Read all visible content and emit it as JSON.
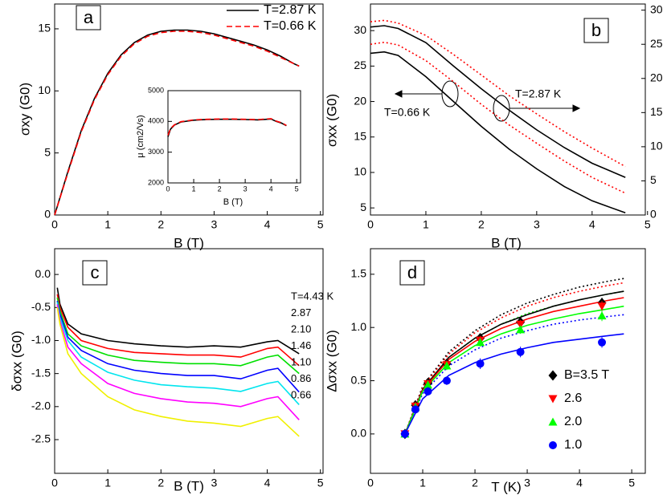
{
  "chart_data": [
    {
      "type": "line",
      "panel_label": "a",
      "xlabel": "B (T)",
      "ylabel": "σxy (G0)",
      "xlim": [
        0,
        5.05
      ],
      "ylim": [
        0,
        17
      ],
      "xticks": [
        0,
        1,
        2,
        3,
        4,
        5
      ],
      "yticks": [
        0,
        5,
        10,
        15
      ],
      "legend": "upper right",
      "x": [
        0,
        0.25,
        0.5,
        0.75,
        1,
        1.25,
        1.5,
        1.75,
        2,
        2.25,
        2.5,
        2.75,
        3,
        3.25,
        3.5,
        3.75,
        4,
        4.25,
        4.5,
        4.6
      ],
      "series": [
        {
          "name": "T=2.87 K",
          "color": "#000000",
          "style": "solid",
          "values": [
            0,
            3.5,
            6.8,
            9.4,
            11.4,
            12.9,
            13.9,
            14.5,
            14.8,
            14.9,
            14.9,
            14.8,
            14.6,
            14.3,
            14.0,
            13.7,
            13.3,
            12.8,
            12.2,
            12.0
          ]
        },
        {
          "name": "T=0.66 K",
          "color": "#ff0000",
          "style": "dashed",
          "values": [
            0,
            3.4,
            6.7,
            9.3,
            11.3,
            12.8,
            13.8,
            14.4,
            14.7,
            14.8,
            14.8,
            14.7,
            14.5,
            14.2,
            13.9,
            13.6,
            13.2,
            12.7,
            12.2,
            12.0
          ]
        }
      ]
    },
    {
      "type": "line",
      "xlabel": "B (T)",
      "ylabel": "μ (cm2/Vs)",
      "xlim": [
        0,
        5.15
      ],
      "ylim": [
        2000,
        5000
      ],
      "xticks": [
        0,
        1,
        2,
        3,
        4,
        5
      ],
      "yticks": [
        2000,
        3000,
        4000,
        5000
      ],
      "x": [
        0,
        0.1,
        0.25,
        0.5,
        1,
        1.5,
        2,
        2.5,
        3,
        3.5,
        4,
        4.2,
        4.4,
        4.6
      ],
      "series": [
        {
          "color": "#000000",
          "style": "solid",
          "values": [
            3500,
            3750,
            3880,
            3980,
            4040,
            4060,
            4070,
            4070,
            4060,
            4050,
            4080,
            4000,
            3950,
            3860
          ]
        },
        {
          "color": "#ff0000",
          "style": "dashed",
          "values": [
            3550,
            3770,
            3890,
            3990,
            4050,
            4070,
            4080,
            4080,
            4070,
            4060,
            4090,
            4010,
            3960,
            3870
          ]
        }
      ]
    },
    {
      "type": "line",
      "panel_label": "b",
      "xlabel": "B (T)",
      "ylabel": "σxx (G0)",
      "xlim": [
        0,
        4.96
      ],
      "ylim": [
        4,
        33.75
      ],
      "y2lim": [
        0,
        30.9
      ],
      "xticks": [
        0,
        1,
        2,
        3,
        4,
        5
      ],
      "yticks": [
        5,
        10,
        15,
        20,
        25,
        30
      ],
      "y2ticks": [
        0,
        5,
        10,
        15,
        20,
        25,
        30
      ],
      "annotations": [
        "T=0.66 K",
        "T=2.87 K"
      ],
      "x": [
        0,
        0.25,
        0.5,
        1,
        1.5,
        2,
        2.5,
        3,
        3.5,
        4,
        4.6
      ],
      "series": [
        {
          "color": "#000000",
          "style": "solid",
          "values": [
            30.5,
            30.7,
            30.3,
            28.3,
            25,
            21.8,
            18.8,
            16,
            13.5,
            11.3,
            9.3
          ]
        },
        {
          "color": "#000000",
          "style": "solid",
          "values": [
            26.8,
            27,
            26.5,
            23.5,
            20,
            16.5,
            13.3,
            10.5,
            8,
            6,
            4.3
          ]
        },
        {
          "color": "#ff0000",
          "style": "dotted",
          "axis": "y2",
          "values": [
            28.3,
            28.5,
            28.1,
            26.3,
            23.5,
            20.5,
            17.5,
            14.8,
            12.2,
            9.8,
            7.1
          ]
        },
        {
          "color": "#ff0000",
          "style": "dotted",
          "axis": "y2",
          "values": [
            25,
            25.3,
            24.9,
            22.6,
            19.5,
            16.2,
            13.2,
            10.5,
            7.9,
            5.5,
            3.2
          ]
        }
      ]
    },
    {
      "type": "line",
      "panel_label": "c",
      "xlabel": "B (T)",
      "ylabel": "δσxx (G0)",
      "xlim": [
        0,
        5.05
      ],
      "ylim": [
        -3.01,
        0.39
      ],
      "xticks": [
        0,
        1,
        2,
        3,
        4,
        5
      ],
      "yticks": [
        {
          "value": 0,
          "label": "0.0"
        },
        -0.5,
        {
          "value": -1,
          "label": "-1.0"
        },
        -1.5,
        {
          "value": -2,
          "label": "-2.0"
        },
        -2.5
      ],
      "legend": "right labels",
      "x": [
        0.05,
        0.1,
        0.25,
        0.5,
        1,
        1.5,
        2,
        2.5,
        3,
        3.5,
        4,
        4.2,
        4.6
      ],
      "series": [
        {
          "name": "T=4.43 K",
          "color": "#000000",
          "style": "solid",
          "values": [
            -0.2,
            -0.45,
            -0.75,
            -0.9,
            -1.0,
            -1.05,
            -1.08,
            -1.1,
            -1.08,
            -1.1,
            -1.02,
            -1.0,
            -1.2
          ]
        },
        {
          "name": "2.87",
          "color": "#ff0000",
          "style": "solid",
          "values": [
            -0.3,
            -0.5,
            -0.8,
            -1.0,
            -1.12,
            -1.18,
            -1.2,
            -1.22,
            -1.22,
            -1.25,
            -1.12,
            -1.1,
            -1.38
          ]
        },
        {
          "name": "2.10",
          "color": "#00e000",
          "style": "solid",
          "values": [
            -0.35,
            -0.55,
            -0.9,
            -1.08,
            -1.22,
            -1.3,
            -1.33,
            -1.35,
            -1.35,
            -1.38,
            -1.25,
            -1.22,
            -1.5
          ]
        },
        {
          "name": "1.46",
          "color": "#0000ff",
          "style": "solid",
          "values": [
            -0.4,
            -0.6,
            -0.95,
            -1.15,
            -1.35,
            -1.45,
            -1.5,
            -1.53,
            -1.53,
            -1.58,
            -1.45,
            -1.42,
            -1.78
          ]
        },
        {
          "name": "1.10",
          "color": "#00e5ee",
          "style": "solid",
          "values": [
            -0.42,
            -0.65,
            -1.0,
            -1.25,
            -1.48,
            -1.6,
            -1.67,
            -1.7,
            -1.72,
            -1.77,
            -1.65,
            -1.62,
            -1.97
          ]
        },
        {
          "name": "0.86",
          "color": "#ff00ff",
          "style": "solid",
          "values": [
            -0.45,
            -0.7,
            -1.1,
            -1.35,
            -1.65,
            -1.8,
            -1.88,
            -1.93,
            -1.95,
            -2.0,
            -1.88,
            -1.85,
            -2.2
          ]
        },
        {
          "name": "0.66",
          "color": "#f0f000",
          "style": "solid",
          "values": [
            -0.5,
            -0.75,
            -1.2,
            -1.5,
            -1.85,
            -2.05,
            -2.15,
            -2.22,
            -2.25,
            -2.3,
            -2.18,
            -2.15,
            -2.45
          ]
        }
      ]
    },
    {
      "type": "scatter",
      "panel_label": "d",
      "xlabel": "T (K)",
      "ylabel": "Δσxx (G0)",
      "xlim": [
        0,
        5.26
      ],
      "ylim": [
        -0.37,
        1.74
      ],
      "xticks": [
        0,
        1,
        2,
        3,
        4,
        5
      ],
      "yticks": [
        {
          "value": 0,
          "label": "0.0"
        },
        0.5,
        {
          "value": 1,
          "label": "1.0"
        },
        1.5
      ],
      "legend": "lower right",
      "x": [
        0.66,
        0.86,
        1.1,
        1.46,
        2.1,
        2.87,
        4.43
      ],
      "series": [
        {
          "name": "B=3.5 T",
          "color": "#000000",
          "marker": "diamond",
          "values": [
            0,
            0.27,
            0.48,
            0.66,
            0.9,
            1.05,
            1.23
          ],
          "errors": [
            0.04,
            0.04,
            0.04,
            0.04,
            0.04,
            0.04,
            0.05
          ]
        },
        {
          "name": "2.6",
          "color": "#ff0000",
          "marker": "triangle-down",
          "values": [
            0,
            0.26,
            0.47,
            0.65,
            0.88,
            1.03,
            1.2
          ],
          "errors": [
            0.04,
            0.04,
            0.04,
            0.04,
            0.04,
            0.04,
            0.05
          ]
        },
        {
          "name": "2.0",
          "color": "#00ff00",
          "marker": "triangle-up",
          "values": [
            0,
            0.25,
            0.46,
            0.64,
            0.86,
            0.98,
            1.11
          ],
          "errors": [
            0.04,
            0.04,
            0.04,
            0.04,
            0.04,
            0.04,
            0.05
          ]
        },
        {
          "name": "1.0",
          "color": "#0000ff",
          "marker": "circle",
          "values": [
            0,
            0.23,
            0.4,
            0.5,
            0.66,
            0.77,
            0.86
          ],
          "errors": [
            0.04,
            0.04,
            0.04,
            0.04,
            0.05,
            0.05,
            0.05
          ]
        }
      ],
      "fit_x": [
        0.66,
        1,
        1.5,
        2,
        2.5,
        3,
        3.5,
        4,
        4.5,
        4.85
      ],
      "fits": [
        {
          "color": "#000000",
          "style": "dotted",
          "values": [
            0,
            0.45,
            0.77,
            0.97,
            1.12,
            1.23,
            1.31,
            1.38,
            1.43,
            1.46
          ]
        },
        {
          "color": "#ff0000",
          "style": "dotted",
          "values": [
            0,
            0.44,
            0.75,
            0.95,
            1.09,
            1.2,
            1.28,
            1.34,
            1.39,
            1.42
          ]
        },
        {
          "color": "#00ff00",
          "style": "dotted",
          "values": [
            0,
            0.42,
            0.72,
            0.9,
            1.03,
            1.13,
            1.2,
            1.26,
            1.31,
            1.34
          ]
        },
        {
          "color": "#0000ff",
          "style": "dotted",
          "values": [
            0,
            0.38,
            0.64,
            0.79,
            0.9,
            0.97,
            1.03,
            1.07,
            1.1,
            1.12
          ]
        },
        {
          "color": "#000000",
          "style": "solid",
          "values": [
            0,
            0.42,
            0.72,
            0.9,
            1.03,
            1.12,
            1.2,
            1.26,
            1.31,
            1.34
          ]
        },
        {
          "color": "#ff0000",
          "style": "solid",
          "values": [
            0,
            0.41,
            0.7,
            0.87,
            0.99,
            1.08,
            1.15,
            1.2,
            1.25,
            1.28
          ]
        },
        {
          "color": "#00ff00",
          "style": "solid",
          "values": [
            0,
            0.4,
            0.67,
            0.83,
            0.94,
            1.02,
            1.08,
            1.13,
            1.17,
            1.2
          ]
        },
        {
          "color": "#0000ff",
          "style": "solid",
          "values": [
            0,
            0.33,
            0.55,
            0.67,
            0.75,
            0.81,
            0.86,
            0.89,
            0.92,
            0.94
          ]
        }
      ]
    }
  ]
}
